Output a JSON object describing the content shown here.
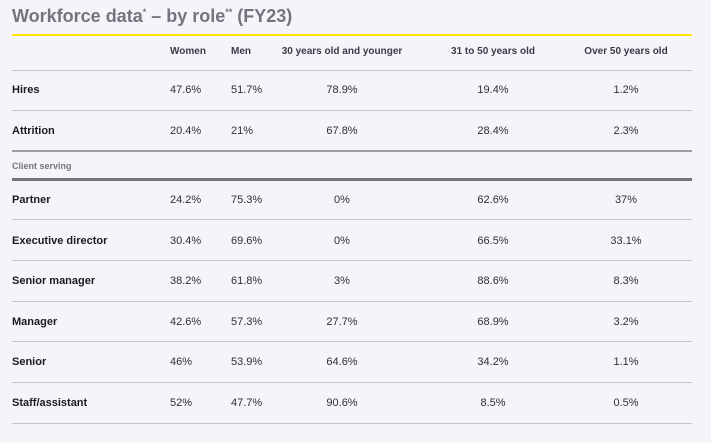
{
  "title": {
    "main": "Workforce data",
    "mark1": "*",
    "dash": " – by role",
    "mark2": "**",
    "period": " (FY23)"
  },
  "columns": [
    "Women",
    "Men",
    "30 years old and younger",
    "31 to 50 years old",
    "Over 50 years old"
  ],
  "section_label": "Client serving",
  "rows": [
    {
      "label": "Hires",
      "values": [
        "47.6%",
        "51.7%",
        "78.9%",
        "19.4%",
        "1.2%"
      ]
    },
    {
      "label": "Attrition",
      "values": [
        "20.4%",
        "21%",
        "67.8%",
        "28.4%",
        "2.3%"
      ]
    },
    {
      "label": "Partner",
      "values": [
        "24.2%",
        "75.3%",
        "0%",
        "62.6%",
        "37%"
      ]
    },
    {
      "label": "Executive director",
      "values": [
        "30.4%",
        "69.6%",
        "0%",
        "66.5%",
        "33.1%"
      ]
    },
    {
      "label": "Senior manager",
      "values": [
        "38.2%",
        "61.8%",
        "3%",
        "88.6%",
        "8.3%"
      ]
    },
    {
      "label": "Manager",
      "values": [
        "42.6%",
        "57.3%",
        "27.7%",
        "68.9%",
        "3.2%"
      ]
    },
    {
      "label": "Senior",
      "values": [
        "46%",
        "53.9%",
        "64.6%",
        "34.2%",
        "1.1%"
      ]
    },
    {
      "label": "Staff/assistant",
      "values": [
        "52%",
        "47.7%",
        "90.6%",
        "8.5%",
        "0.5%"
      ]
    }
  ]
}
